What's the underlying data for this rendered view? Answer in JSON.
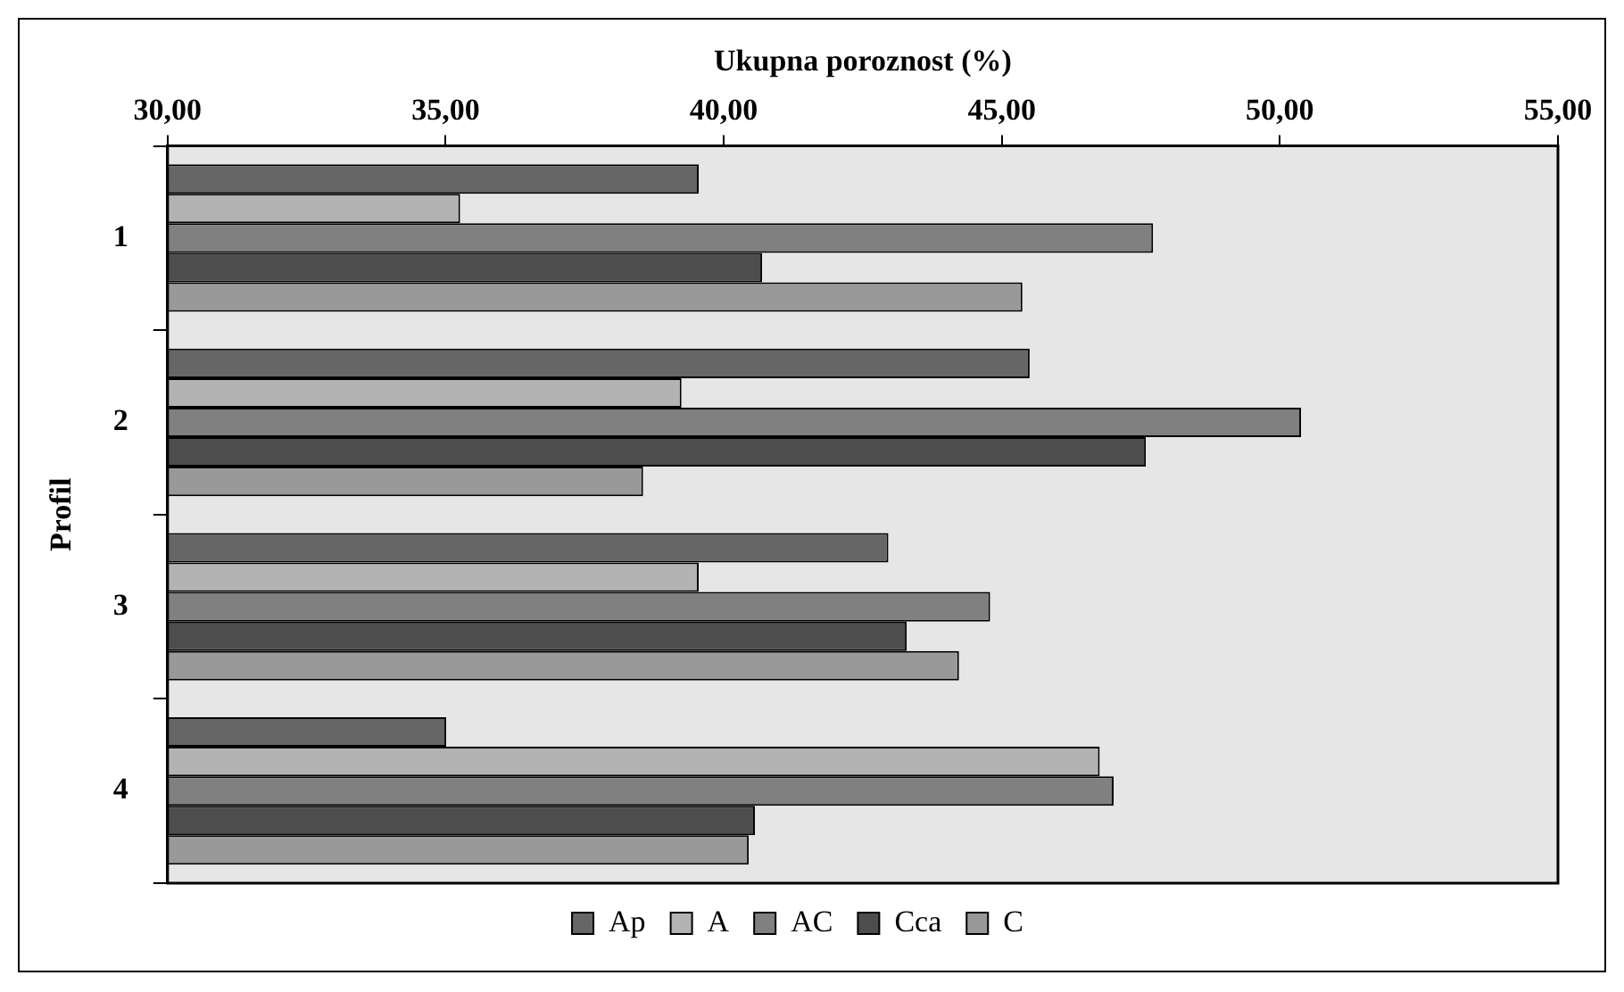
{
  "chart_data": {
    "type": "bar",
    "orientation": "horizontal",
    "xlabel": "Ukupna poroznost (%)",
    "ylabel": "Profil",
    "categories": [
      "1",
      "2",
      "3",
      "4"
    ],
    "series": [
      {
        "name": "Ap",
        "color": "#666666",
        "values": [
          39.55,
          45.5,
          42.96,
          35.01
        ]
      },
      {
        "name": "A",
        "color": "#b3b3b3",
        "values": [
          35.26,
          39.24,
          39.55,
          46.76
        ]
      },
      {
        "name": "AC",
        "color": "#808080",
        "values": [
          47.72,
          50.38,
          44.79,
          47.01
        ]
      },
      {
        "name": "Cca",
        "color": "#4d4d4d",
        "values": [
          40.69,
          47.59,
          43.29,
          40.56
        ]
      },
      {
        "name": "C",
        "color": "#999999",
        "values": [
          45.37,
          38.55,
          44.23,
          40.45
        ]
      }
    ],
    "xlim": [
      30,
      55
    ],
    "xticks": [
      {
        "value": 30,
        "label": "30,00"
      },
      {
        "value": 35,
        "label": "35,00"
      },
      {
        "value": 40,
        "label": "40,00"
      },
      {
        "value": 45,
        "label": "45,00"
      },
      {
        "value": 50,
        "label": "50,00"
      },
      {
        "value": 55,
        "label": "55,00"
      }
    ],
    "grid": false,
    "legend": "bottom"
  }
}
